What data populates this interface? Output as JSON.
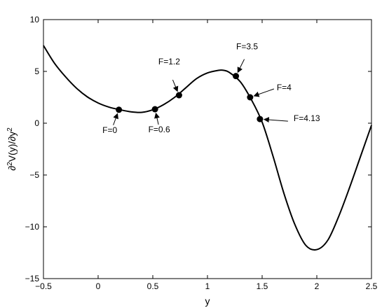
{
  "chart_data": {
    "type": "line",
    "title": "",
    "xlabel": "y",
    "ylabel_main": "∂",
    "ylabel_sup1": "2",
    "ylabel_mid": "V(y)/∂y",
    "ylabel_sup2": "2",
    "xlim": [
      -0.5,
      2.5
    ],
    "ylim": [
      -15,
      10
    ],
    "xticks": [
      -0.5,
      0,
      0.5,
      1,
      1.5,
      2,
      2.5
    ],
    "xtick_labels": [
      "−0.5",
      "0",
      "0.5",
      "1",
      "1.5",
      "2",
      "2.5"
    ],
    "yticks": [
      -15,
      -10,
      -5,
      0,
      5,
      10
    ],
    "ytick_labels": [
      "−15",
      "−10",
      "−5",
      "0",
      "5",
      "10"
    ],
    "grid": false,
    "series": [
      {
        "x": [
          -0.5,
          -0.4,
          -0.3,
          -0.2,
          -0.1,
          0.0,
          0.1,
          0.2,
          0.3,
          0.4,
          0.5,
          0.6,
          0.7,
          0.8,
          0.9,
          1.0,
          1.1,
          1.15,
          1.2,
          1.3,
          1.4,
          1.5,
          1.6,
          1.7,
          1.8,
          1.9,
          2.0,
          2.1,
          2.2,
          2.3,
          2.4,
          2.5
        ],
        "y": [
          7.5,
          5.8,
          4.5,
          3.4,
          2.55,
          1.95,
          1.55,
          1.3,
          1.1,
          1.05,
          1.3,
          1.8,
          2.5,
          3.4,
          4.3,
          4.85,
          5.1,
          5.1,
          4.9,
          4.0,
          2.3,
          0.1,
          -3.2,
          -6.8,
          -9.8,
          -11.8,
          -12.2,
          -11.3,
          -9.0,
          -6.2,
          -3.2,
          -0.2
        ]
      }
    ],
    "points": [
      {
        "label": "F=0",
        "x": 0.19,
        "y": 1.3
      },
      {
        "label": "F=0.6",
        "x": 0.52,
        "y": 1.35
      },
      {
        "label": "F=1.2",
        "x": 0.74,
        "y": 2.7
      },
      {
        "label": "F=3.5",
        "x": 1.26,
        "y": 4.55
      },
      {
        "label": "F=4",
        "x": 1.39,
        "y": 2.5
      },
      {
        "label": "F=4.13",
        "x": 1.48,
        "y": 0.4
      }
    ]
  }
}
